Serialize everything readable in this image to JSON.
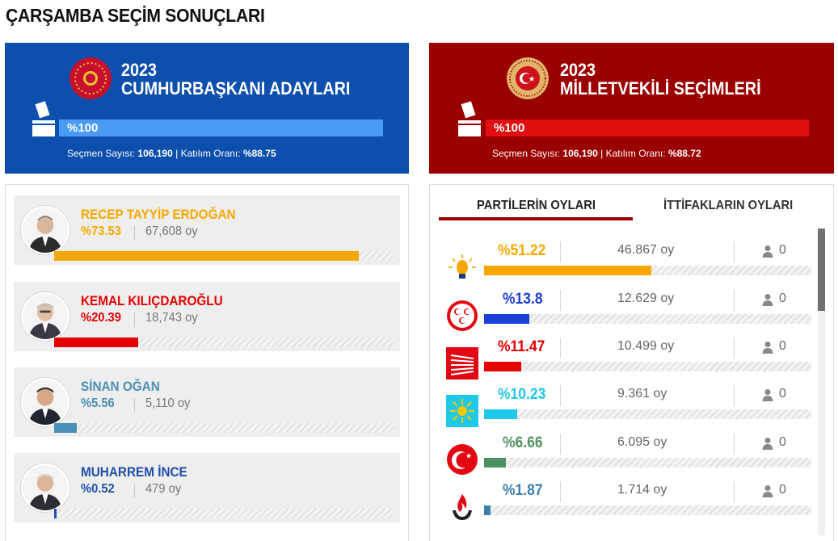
{
  "page_title": "ÇARŞAMBA SEÇİM SONUÇLARI",
  "presidential": {
    "year": "2023",
    "subtitle": "CUMHURBAŞKANI ADAYLARI",
    "progress_label": "%100",
    "progress": 1.0,
    "voters_label": "Seçmen Sayısı:",
    "voters_value": "106,190",
    "sep": " | ",
    "turnout_label": "Katılım Oranı:",
    "turnout_value": "%88.75",
    "bg_color": "#0c4fac",
    "bar_color": "#4a9bf4"
  },
  "parliament": {
    "year": "2023",
    "subtitle": "MİLLETVEKİLİ SEÇİMLERİ",
    "progress_label": "%100",
    "progress": 1.0,
    "voters_label": "Seçmen Sayısı:",
    "voters_value": "106,190",
    "sep": " | ",
    "turnout_label": "Katılım Oranı:",
    "turnout_value": "%88.72",
    "bg_color": "#9a0000",
    "bar_color": "#e01010"
  },
  "candidates": [
    {
      "name": "RECEP TAYYİP ERDOĞAN",
      "pct": "%73.53",
      "share": 73.53,
      "votes": "67,608 oy",
      "color": "#f6a800",
      "photo_icon": "candidate-photo"
    },
    {
      "name": "KEMAL KILIÇDAROĞLU",
      "pct": "%20.39",
      "share": 20.39,
      "votes": "18,743 oy",
      "color": "#e60000",
      "photo_icon": "candidate-photo"
    },
    {
      "name": "SİNAN OĞAN",
      "pct": "%5.56",
      "share": 5.56,
      "votes": "5,110 oy",
      "color": "#4a8fb5",
      "photo_icon": "candidate-photo"
    },
    {
      "name": "MUHARREM İNCE",
      "pct": "%0.52",
      "share": 0.52,
      "votes": "479 oy",
      "color": "#1f4fa8",
      "photo_icon": "candidate-photo"
    }
  ],
  "tabs": [
    {
      "label": "PARTİLERİN OYLARI",
      "active": true
    },
    {
      "label": "İTTİFAKLARIN OYLARI",
      "active": false
    }
  ],
  "parties": [
    {
      "pct": "%51.22",
      "share": 51.22,
      "votes": "46.867 oy",
      "seats": "0",
      "color": "#f6a800",
      "logo": "akp-logo"
    },
    {
      "pct": "%13.8",
      "share": 13.8,
      "votes": "12.629 oy",
      "seats": "0",
      "color": "#1a3fd6",
      "logo": "mhp-logo"
    },
    {
      "pct": "%11.47",
      "share": 11.47,
      "votes": "10.499 oy",
      "seats": "0",
      "color": "#e60000",
      "logo": "chp-logo"
    },
    {
      "pct": "%10.23",
      "share": 10.23,
      "votes": "9.361 oy",
      "seats": "0",
      "color": "#1ec8e8",
      "logo": "iyi-logo"
    },
    {
      "pct": "%6.66",
      "share": 6.66,
      "votes": "6.095 oy",
      "seats": "0",
      "color": "#4e9160",
      "logo": "yrp-logo"
    },
    {
      "pct": "%1.87",
      "share": 1.87,
      "votes": "1.714 oy",
      "seats": "0",
      "color": "#3a7fae",
      "logo": "party-logo"
    }
  ]
}
